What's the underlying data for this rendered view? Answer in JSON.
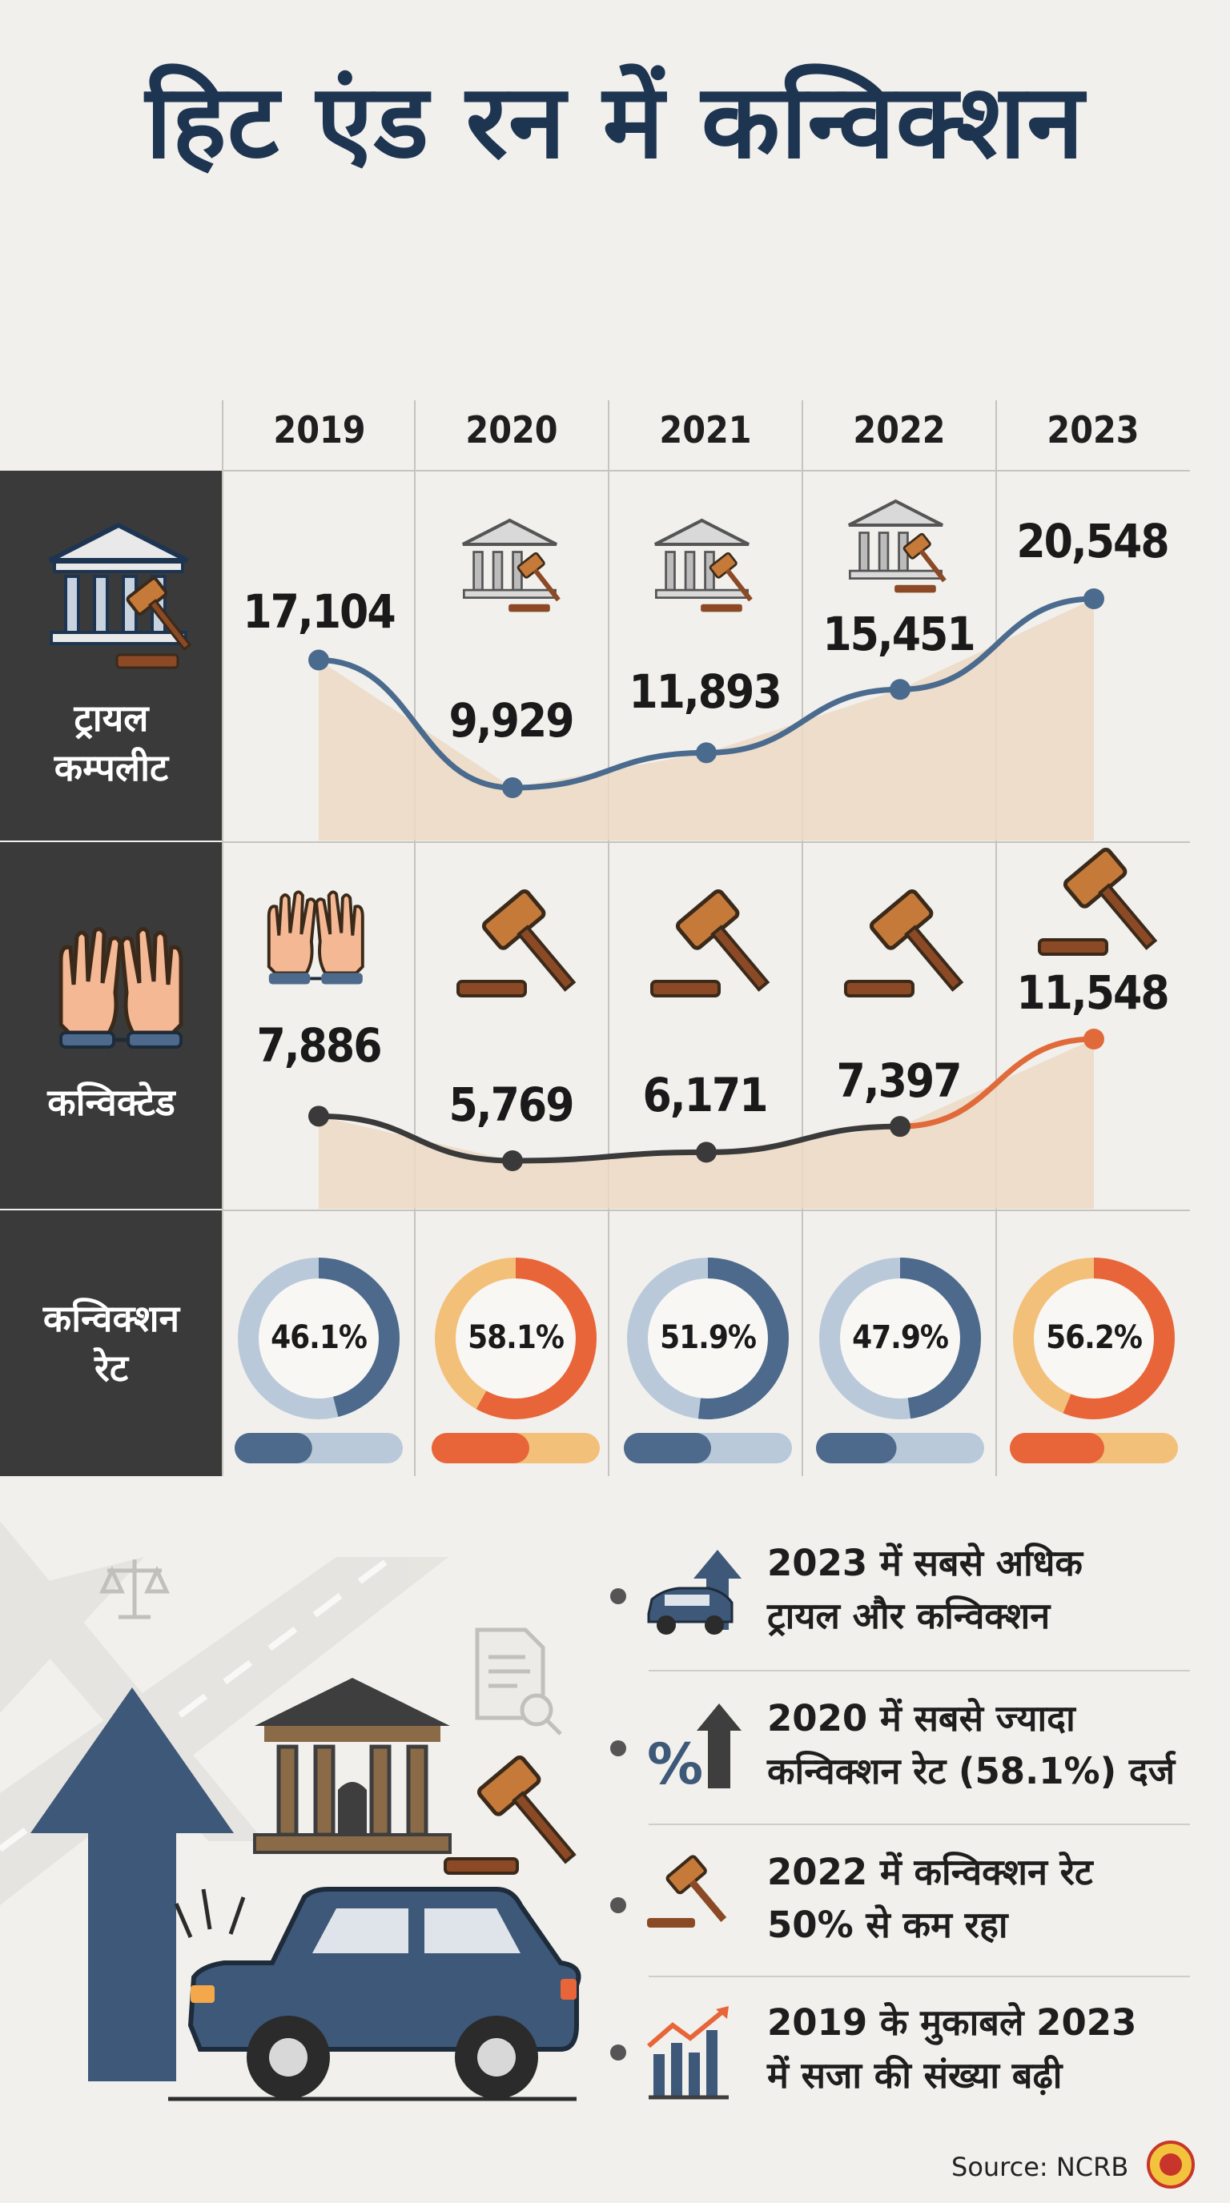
{
  "title": "हिट एंड रन में कन्विक्शन",
  "row_labels": {
    "trials": [
      "ट्रायल",
      "कम्पलीट"
    ],
    "convicted": "कन्विक्टेड",
    "rate": [
      "कन्विक्शन",
      "रेट"
    ]
  },
  "chart_data": [
    {
      "type": "area",
      "categories": [
        "2019",
        "2020",
        "2021",
        "2022",
        "2023"
      ],
      "values": [
        17104,
        9929,
        11893,
        15451,
        20548
      ],
      "labels": [
        "17,104",
        "9,929",
        "11,893",
        "15,451",
        "20,548"
      ]
    },
    {
      "type": "area",
      "categories": [
        "2019",
        "2020",
        "2021",
        "2022",
        "2023"
      ],
      "values": [
        7886,
        5769,
        6171,
        7397,
        11548
      ],
      "labels": [
        "7,886",
        "5,769",
        "6,171",
        "7,397",
        "11,548"
      ]
    },
    {
      "type": "pie",
      "categories": [
        "2019",
        "2020",
        "2021",
        "2022",
        "2023"
      ],
      "values": [
        46.1,
        58.1,
        51.9,
        47.9,
        56.2
      ],
      "labels": [
        "46.1%",
        "58.1%",
        "51.9%",
        "47.9%",
        "56.2%"
      ]
    }
  ],
  "facts": [
    [
      "2023 में सबसे अधिक",
      "ट्रायल और कन्विक्शन"
    ],
    [
      "2020 में सबसे ज्यादा",
      "कन्विक्शन रेट (58.1%) दर्ज"
    ],
    [
      "2022 में कन्विक्शन रेट",
      "50% से कम रहा"
    ],
    [
      "2019 के मुकाबले 2023",
      "में सजा की संख्या बढ़ी"
    ]
  ],
  "source": "Source: NCRB",
  "colors": {
    "title": "#1e3552",
    "dark_panel": "#3a3a3a",
    "trial_line": "#4a6a8e",
    "convicted_line": "#3a3a3a",
    "highlight": "#e06a3a",
    "area_fill": "#ecd9c4",
    "ring_blue": "#4d6a8c",
    "ring_blue_light": "#b9c9da",
    "ring_orange": "#e8653a",
    "ring_orange_light": "#f3c07a"
  },
  "icons": [
    "courthouse-gavel-icon",
    "handcuffed-hands-icon",
    "gavel-icon",
    "car-up-arrow-icon",
    "percent-up-arrow-icon",
    "rising-bar-chart-icon",
    "scales-of-justice-icon",
    "document-check-icon",
    "emblem-icon"
  ]
}
